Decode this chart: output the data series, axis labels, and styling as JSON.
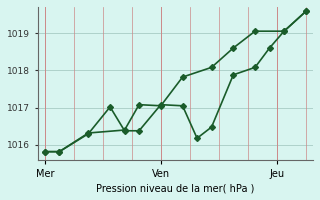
{
  "title": "",
  "xlabel": "Pression niveau de la mer( hPa )",
  "background_color": "#d8f5f0",
  "plot_bg_color": "#d8f5f0",
  "line_color": "#1a5c2a",
  "ylim": [
    1015.6,
    1019.7
  ],
  "yticks": [
    1016,
    1017,
    1018,
    1019
  ],
  "xtick_positions": [
    0,
    8,
    16
  ],
  "xtick_labels": [
    "Mer",
    "Ven",
    "Jeu"
  ],
  "line1_x": [
    0,
    1,
    3,
    4.5,
    5.5,
    6.5,
    8,
    9.5,
    10.5,
    11.5,
    13,
    14.5,
    15.5,
    16.5,
    18
  ],
  "line1_y": [
    1015.82,
    1015.82,
    1016.3,
    1017.02,
    1016.38,
    1016.38,
    1017.08,
    1017.05,
    1016.18,
    1016.48,
    1017.88,
    1018.08,
    1018.6,
    1019.05,
    1019.58
  ],
  "line2_x": [
    0,
    1,
    3,
    5.5,
    6.5,
    8,
    9.5,
    11.5,
    13,
    14.5,
    16.5,
    18
  ],
  "line2_y": [
    1015.82,
    1015.82,
    1016.32,
    1016.4,
    1017.08,
    1017.05,
    1017.82,
    1018.08,
    1018.6,
    1019.05,
    1019.05,
    1019.58
  ],
  "marker_size": 3,
  "linewidth": 1.2,
  "vgrid_major": [
    0,
    8,
    16
  ],
  "vgrid_minor": [
    2,
    4,
    6,
    10,
    12,
    14,
    18
  ]
}
